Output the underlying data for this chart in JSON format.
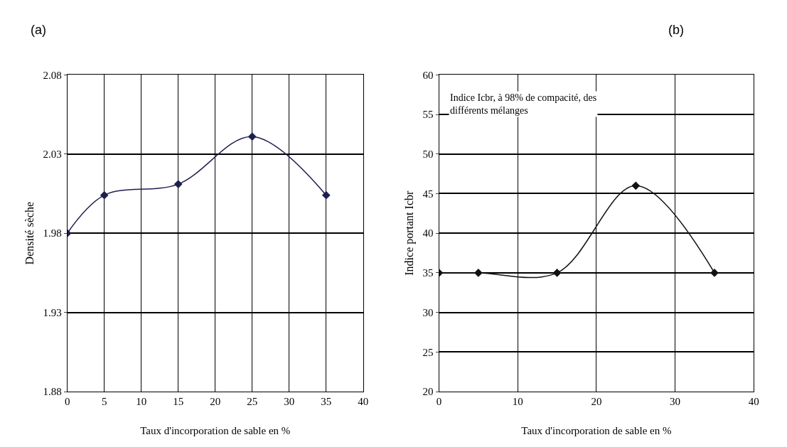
{
  "chart_data": [
    {
      "type": "line",
      "title": "(a)",
      "xlabel": "Taux d'incorporation de sable en %",
      "ylabel": "Densité sèche",
      "x": [
        0,
        5,
        15,
        25,
        35
      ],
      "series": [
        {
          "color": "#1f1f4f",
          "values": [
            1.98,
            2.004,
            2.011,
            2.041,
            2.004
          ]
        }
      ],
      "xlim": [
        0,
        40
      ],
      "ylim": [
        1.88,
        2.08
      ],
      "xticks": [
        0,
        5,
        10,
        15,
        20,
        25,
        30,
        35,
        40
      ],
      "yticks": [
        1.88,
        1.93,
        1.98,
        2.03,
        2.08
      ],
      "grid": true,
      "marker": "diamond",
      "line_style": "solid"
    },
    {
      "type": "line",
      "title": "(b)",
      "xlabel": "Taux d'incorporation de sable en %",
      "ylabel": "Indice portant Icbr",
      "x": [
        0,
        5,
        15,
        25,
        35
      ],
      "series": [
        {
          "color": "#111111",
          "values": [
            35,
            35,
            35,
            46,
            35
          ]
        }
      ],
      "xlim": [
        0,
        40
      ],
      "ylim": [
        20,
        60
      ],
      "xticks": [
        0,
        10,
        20,
        30,
        40
      ],
      "yticks": [
        20,
        25,
        30,
        35,
        40,
        45,
        50,
        55,
        60
      ],
      "grid": true,
      "marker": "diamond",
      "line_style": "solid",
      "annotations": [
        "Indice Icbr, à 98% de compacité, des différents mélanges"
      ]
    }
  ]
}
